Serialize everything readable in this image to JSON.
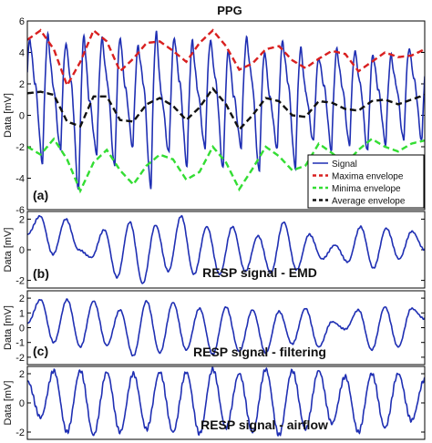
{
  "figure": {
    "title": "PPG"
  },
  "chart_data": [
    {
      "type": "line",
      "panel_label": "(a)",
      "title": "PPG",
      "ylabel": "Data [mV]",
      "ylim": [
        -6,
        6
      ],
      "yticks": [
        "6",
        "4",
        "2",
        "0",
        "-2",
        "-4",
        "-6"
      ],
      "grid": false,
      "legend_position": "bottom-right",
      "series": [
        {
          "name": "Signal",
          "color": "#1f2fb3",
          "style": "solid",
          "peaks": [
            4.9,
            5.1,
            4.6,
            5.1,
            4.9,
            5.0,
            4.4,
            5.3,
            5.0,
            4.7,
            4.8,
            4.2,
            4.9,
            4.1,
            4.7,
            4.3,
            3.7,
            4.2,
            4.1,
            3.9,
            3.8,
            4.3
          ],
          "troughs": [
            -2.5,
            -3.0,
            -2.2,
            -4.8,
            -2.4,
            -3.3,
            -2.0,
            -4.6,
            -2.4,
            -3.2,
            -2.1,
            -3.4,
            -2.0,
            -3.6,
            -2.1,
            -3.3,
            -1.7,
            -2.2,
            -1.9,
            -2.3,
            -1.8,
            -1.6
          ]
        },
        {
          "name": "Maxima envelope",
          "color": "#d92020",
          "style": "dashed",
          "values": [
            4.8,
            5.4,
            4.2,
            1.9,
            3.4,
            5.4,
            4.7,
            2.8,
            3.6,
            4.6,
            4.7,
            4.1,
            3.4,
            4.6,
            5.4,
            4.4,
            2.9,
            3.3,
            4.2,
            4.4,
            3.5,
            3.0,
            3.6,
            4.1,
            3.9,
            2.8,
            3.4,
            4.0,
            3.7,
            3.8,
            4.2
          ]
        },
        {
          "name": "Minima envelope",
          "color": "#33dd33",
          "style": "dashed",
          "values": [
            -2.0,
            -2.5,
            -1.5,
            -2.8,
            -4.8,
            -3.0,
            -2.2,
            -3.5,
            -4.4,
            -3.2,
            -2.5,
            -2.8,
            -4.1,
            -3.6,
            -2.0,
            -3.0,
            -4.7,
            -3.4,
            -2.0,
            -2.6,
            -3.5,
            -3.2,
            -1.8,
            -2.4,
            -3.1,
            -2.2,
            -1.5,
            -2.0,
            -2.3,
            -1.8,
            -1.6
          ]
        },
        {
          "name": "Average envelope",
          "color": "#111111",
          "style": "dashed",
          "values": [
            1.4,
            1.5,
            1.3,
            -0.4,
            -0.7,
            1.2,
            1.2,
            -0.3,
            -0.4,
            0.7,
            1.1,
            0.6,
            -0.3,
            0.5,
            1.7,
            0.7,
            -0.9,
            0.0,
            1.1,
            0.9,
            0.0,
            -0.1,
            0.9,
            0.8,
            0.4,
            0.3,
            0.9,
            1.0,
            0.7,
            1.0,
            1.3
          ]
        }
      ]
    },
    {
      "type": "line",
      "panel_label": "(b)",
      "ylabel": "Data [mV]",
      "ylim": [
        -2.5,
        2.5
      ],
      "yticks": [
        "2",
        "0",
        "-2"
      ],
      "annotation": "RESP signal - EMD",
      "series": [
        {
          "color": "#1f2fb3",
          "extrema": [
            1.0,
            2.2,
            -0.3,
            2.0,
            0.0,
            -0.5,
            1.3,
            -1.8,
            1.8,
            -2.2,
            1.6,
            -1.4,
            2.2,
            -1.6,
            1.5,
            -1.6,
            1.5,
            -1.4,
            0.9,
            -1.5,
            1.8,
            -1.3,
            1.0,
            -0.6,
            0.3,
            -0.8,
            1.5,
            -1.2,
            1.4,
            -0.6,
            1.2,
            0.0
          ]
        }
      ]
    },
    {
      "type": "line",
      "panel_label": "(c)",
      "ylabel": "Data [mV]",
      "ylim": [
        -2.5,
        2.5
      ],
      "yticks": [
        "2",
        "1",
        "0",
        "-1",
        "-2"
      ],
      "annotation": "RESP signal - filtering",
      "series": [
        {
          "color": "#1f2fb3",
          "extrema": [
            0.3,
            1.9,
            -1.0,
            1.9,
            -1.3,
            1.8,
            -1.2,
            1.2,
            -1.9,
            1.8,
            -1.7,
            1.7,
            -1.5,
            1.3,
            -1.8,
            1.4,
            -1.6,
            1.2,
            -1.7,
            1.1,
            -1.1,
            1.3,
            -1.3,
            0.4,
            -0.1,
            1.2,
            -1.5,
            1.4,
            -1.3,
            1.3,
            0.6
          ]
        }
      ]
    },
    {
      "type": "line",
      "panel_label": "",
      "ylabel": "Data [mV]",
      "ylim": [
        -2.5,
        2.5
      ],
      "yticks": [
        "2",
        "0",
        "-2"
      ],
      "annotation": "RESP signal - airflow",
      "series": [
        {
          "color": "#1f2fb3",
          "extrema": [
            1.5,
            -1.0,
            2.2,
            -2.0,
            2.2,
            -2.2,
            2.1,
            -2.0,
            2.0,
            -1.8,
            2.1,
            -2.0,
            2.1,
            -2.1,
            2.3,
            -1.7,
            2.0,
            -2.0,
            2.3,
            -2.2,
            2.2,
            -1.8,
            2.2,
            -1.4,
            1.8,
            -2.0,
            2.0,
            -1.7,
            2.0,
            -1.2,
            1.6
          ]
        }
      ]
    }
  ]
}
